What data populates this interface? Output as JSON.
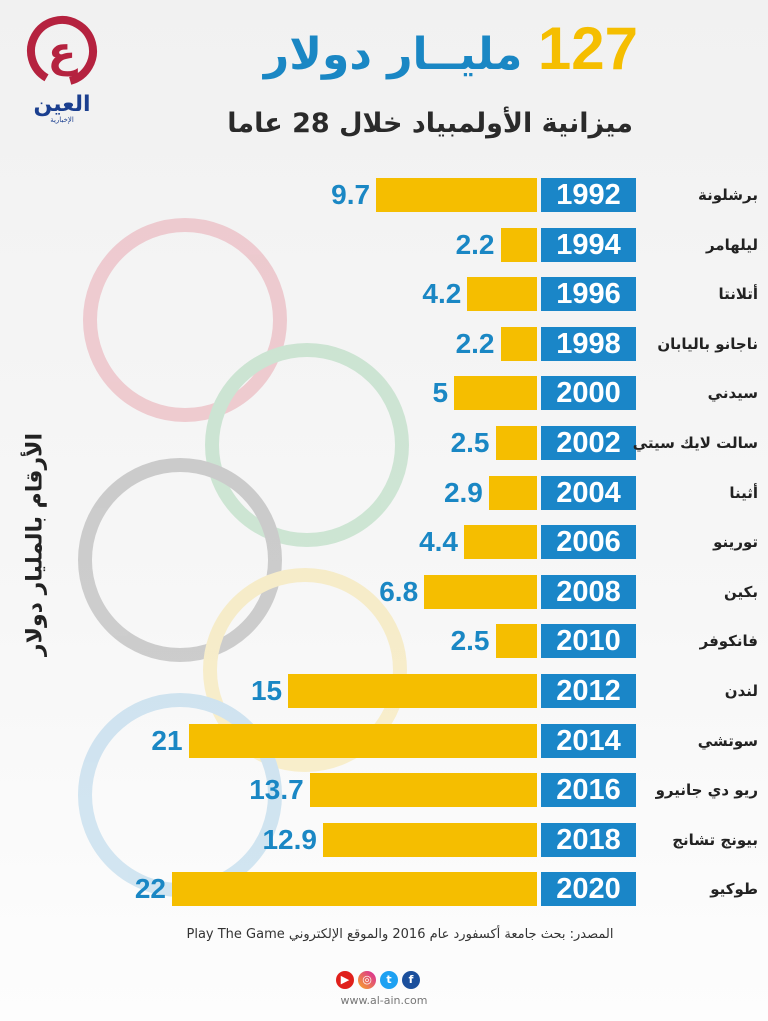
{
  "header": {
    "title_number": "127",
    "title_unit": "مليــار دولار",
    "subtitle": "ميزانية الأولمبياد خلال 28 عاما"
  },
  "logo": {
    "name": "العين",
    "sub": "الإخبارية"
  },
  "colors": {
    "bar": "#f5be00",
    "year_box": "#1a86c8",
    "value_text": "#1a87c4"
  },
  "chart_data": {
    "type": "bar",
    "orientation": "horizontal",
    "ylabel": "الأرقام بالمليار دولار",
    "categories": [
      "1992",
      "1994",
      "1996",
      "1998",
      "2000",
      "2002",
      "2004",
      "2006",
      "2008",
      "2010",
      "2012",
      "2014",
      "2016",
      "2018",
      "2020"
    ],
    "cities": [
      "برشلونة",
      "ليلهامر",
      "أتلانتا",
      "ناجانو باليابان",
      "سيدني",
      "سالت لايك سيتي",
      "أثينا",
      "تورينو",
      "بكين",
      "فانكوفر",
      "لندن",
      "سوتشي",
      "ريو دي جانيرو",
      "بيونج تشانج",
      "طوكيو"
    ],
    "values": [
      9.7,
      2.2,
      4.2,
      2.2,
      5,
      2.5,
      2.9,
      4.4,
      6.8,
      2.5,
      15,
      21,
      13.7,
      12.9,
      22
    ],
    "value_labels": [
      "9.7",
      "2.2",
      "4.2",
      "2.2",
      "5",
      "2.5",
      "2.9",
      "4.4",
      "6.8",
      "2.5",
      "15",
      "21",
      "13.7",
      "12.9",
      "22"
    ],
    "xlim": [
      0,
      22
    ]
  },
  "footer": {
    "source": "المصدر: بحث جامعة أكسفورد عام 2016 والموقع الإلكتروني Play The Game",
    "website": "www.al-ain.com",
    "social_icons": [
      "youtube-icon",
      "instagram-icon",
      "twitter-icon",
      "facebook-icon"
    ]
  }
}
